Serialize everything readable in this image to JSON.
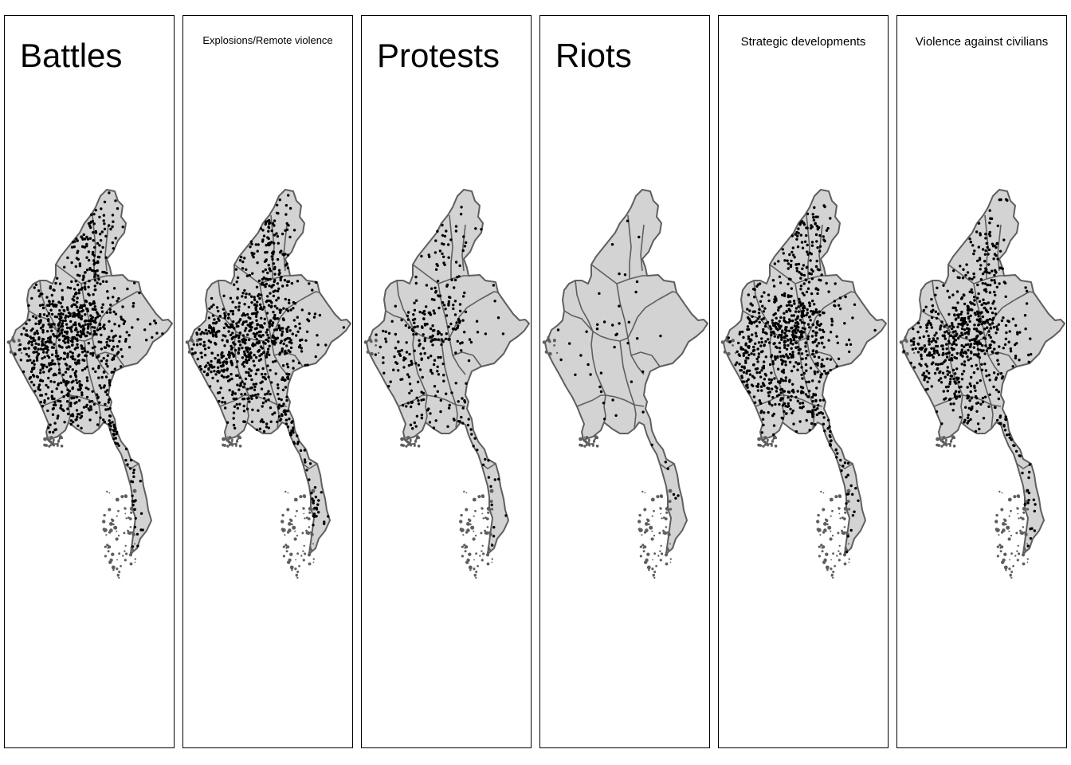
{
  "figure": {
    "panels": [
      {
        "title": "Battles",
        "title_style": "large",
        "density": 1.0
      },
      {
        "title": "Explosions/Remote violence",
        "title_style": "small",
        "density": 0.95
      },
      {
        "title": "Protests",
        "title_style": "large",
        "density": 0.35
      },
      {
        "title": "Riots",
        "title_style": "large",
        "density": 0.05
      },
      {
        "title": "Strategic developments",
        "title_style": "medium",
        "density": 0.9
      },
      {
        "title": "Violence against civilians",
        "title_style": "medium",
        "density": 0.75
      }
    ]
  },
  "map_style": {
    "land_fill": "#d3d3d3",
    "border_color": "#5f5f5f",
    "island_color": "#5f5f5f",
    "point_color": "#000000"
  }
}
